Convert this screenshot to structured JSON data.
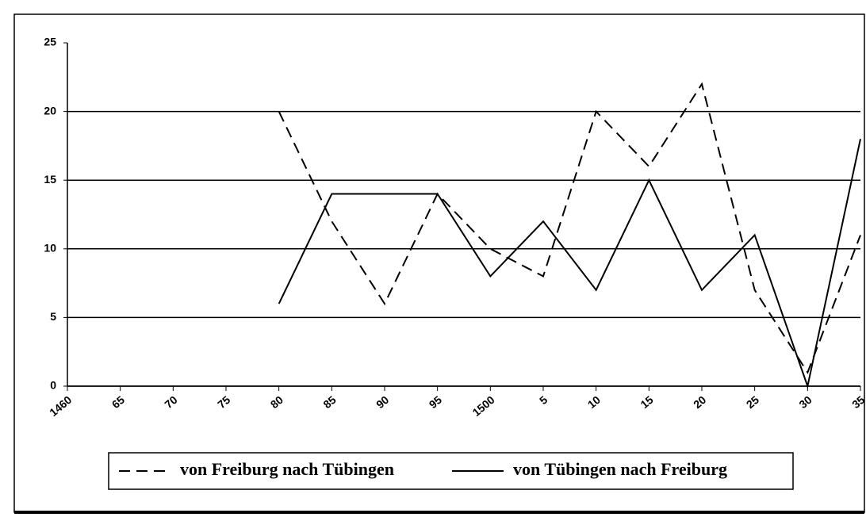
{
  "chart_data": {
    "type": "line",
    "categories": [
      "1460",
      "65",
      "70",
      "75",
      "80",
      "85",
      "90",
      "95",
      "1500",
      "5",
      "10",
      "15",
      "20",
      "25",
      "30",
      "35"
    ],
    "series": [
      {
        "name": "von Freiburg nach Tübingen",
        "color": "#000000",
        "style": "dashed",
        "values": [
          null,
          null,
          null,
          null,
          20,
          12,
          6,
          14,
          10,
          8,
          20,
          16,
          22,
          7,
          1,
          11
        ]
      },
      {
        "name": "von Tübingen nach Freiburg",
        "color": "#000000",
        "style": "solid",
        "values": [
          null,
          null,
          null,
          null,
          6,
          14,
          14,
          14,
          8,
          12,
          7,
          15,
          7,
          11,
          0,
          18
        ]
      }
    ],
    "ylim": [
      0,
      25
    ],
    "yticks": [
      0,
      5,
      10,
      15,
      20,
      25
    ],
    "grid": true,
    "legend": "bottom"
  }
}
